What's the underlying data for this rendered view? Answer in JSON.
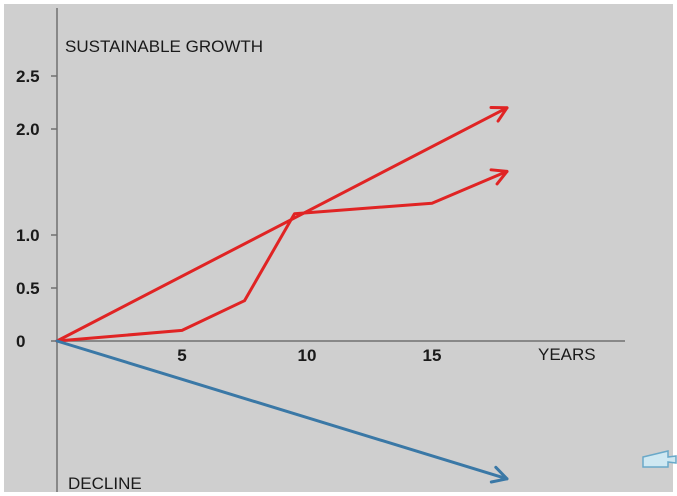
{
  "chart_data": {
    "type": "line",
    "title": "SUSTAINABLE GROWTH",
    "bottom_label": "DECLINE",
    "xlabel": "YEARS",
    "x_ticks": [
      5,
      10,
      15
    ],
    "y_ticks": [
      {
        "value": 0,
        "label": "0"
      },
      {
        "value": 0.5,
        "label": "0.5"
      },
      {
        "value": 1.0,
        "label": "1.0"
      },
      {
        "value": 2.0,
        "label": "2.0"
      },
      {
        "value": 2.5,
        "label": "2.5"
      }
    ],
    "xlim": [
      0,
      23
    ],
    "ylim": [
      -1.5,
      2.8
    ],
    "grid": false,
    "series": [
      {
        "color": "#e02424",
        "arrow_end": true,
        "points": [
          [
            0,
            0
          ],
          [
            18,
            2.2
          ]
        ]
      },
      {
        "color": "#e02424",
        "arrow_end": true,
        "points": [
          [
            0,
            0
          ],
          [
            5,
            0.1
          ],
          [
            7.5,
            0.38
          ],
          [
            9.5,
            1.2
          ],
          [
            15,
            1.3
          ],
          [
            18,
            1.6
          ]
        ]
      },
      {
        "color": "#3a78a6",
        "arrow_end": true,
        "points": [
          [
            0,
            0
          ],
          [
            18,
            -1.3
          ]
        ]
      }
    ]
  }
}
